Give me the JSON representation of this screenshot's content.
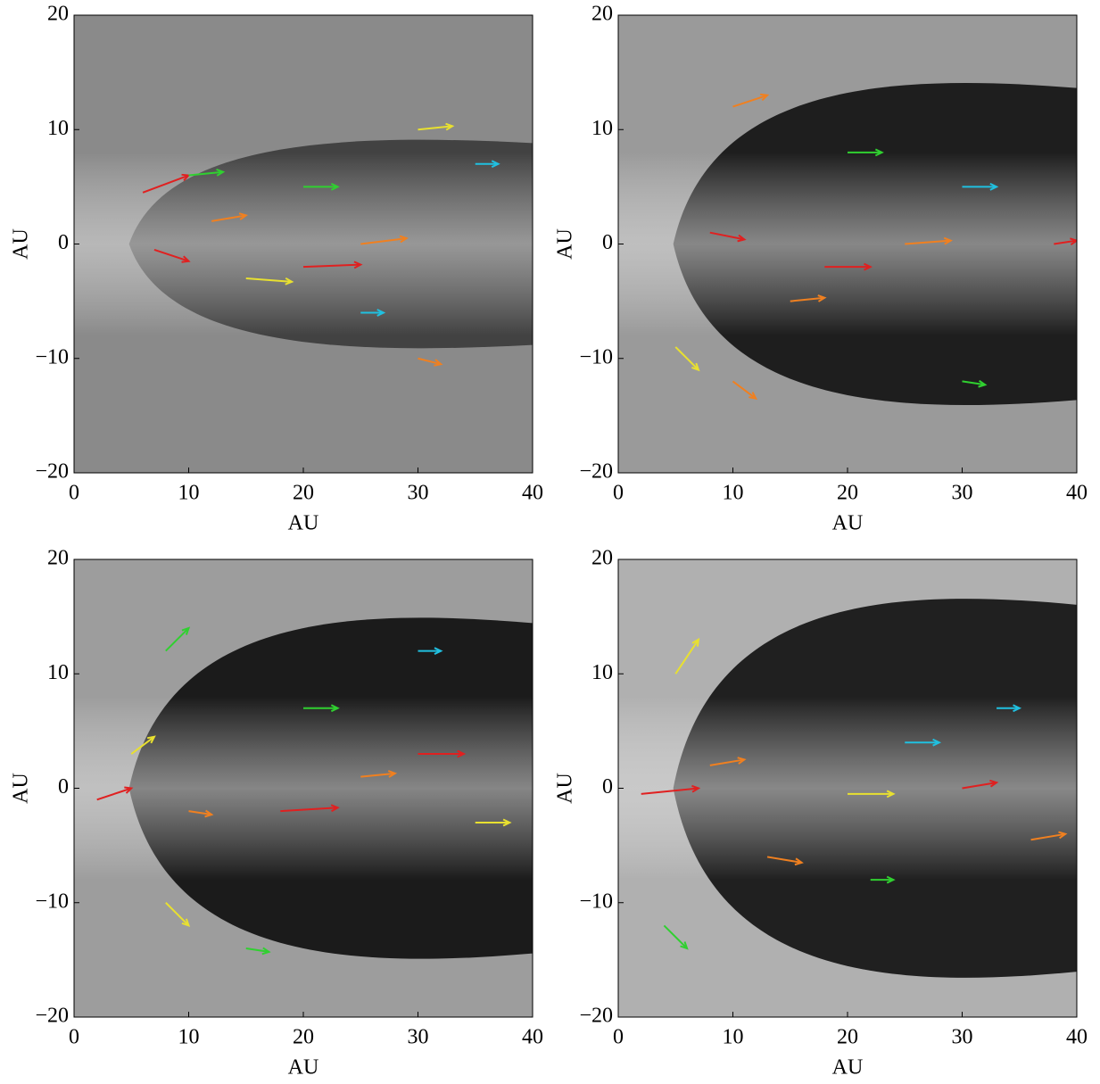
{
  "chart_data": [
    {
      "type": "quiver",
      "xlabel": "AU",
      "ylabel": "AU",
      "xlim": [
        0,
        40
      ],
      "ylim": [
        -20,
        20
      ],
      "xticks": [
        0,
        10,
        20,
        30,
        40
      ],
      "yticks": [
        {
          "value": -20,
          "label": "−20"
        },
        {
          "value": -10,
          "label": "−10"
        },
        0,
        10,
        20
      ],
      "series": [
        {
          "x": [
            6,
            7,
            20,
            12,
            25,
            30,
            15,
            10,
            30,
            20,
            35,
            25
          ],
          "y": [
            4.5,
            -0.5,
            -2,
            2,
            0,
            10,
            -3,
            6,
            -10,
            5,
            7,
            -6
          ],
          "u": [
            4,
            3,
            5,
            3,
            4,
            3,
            4,
            3,
            2,
            3,
            2,
            2
          ],
          "v": [
            1.5,
            -1,
            0.2,
            0.5,
            0.5,
            0.3,
            -0.3,
            0.3,
            -0.5,
            0,
            0,
            0
          ],
          "colors": [
            "#e02020",
            "#e02020",
            "#e02020",
            "#f08020",
            "#f08020",
            "#e8e030",
            "#e8e030",
            "#30d030",
            "#f08020",
            "#30d030",
            "#20c0e0",
            "#20c0e0"
          ]
        }
      ]
    },
    {
      "type": "quiver",
      "xlabel": "AU",
      "ylabel": "AU",
      "xlim": [
        0,
        40
      ],
      "ylim": [
        -20,
        20
      ],
      "xticks": [
        0,
        10,
        20,
        30,
        40
      ],
      "yticks": [
        {
          "value": -20,
          "label": "−20"
        },
        {
          "value": -10,
          "label": "−10"
        },
        0,
        10,
        20
      ],
      "series": [
        {
          "x": [
            8,
            10,
            18,
            25,
            38,
            5,
            15,
            20,
            30,
            30,
            10
          ],
          "y": [
            1,
            12,
            -2,
            0,
            0,
            -9,
            -5,
            8,
            -12,
            5,
            -12
          ],
          "u": [
            3,
            3,
            4,
            4,
            2,
            2,
            3,
            3,
            2,
            3,
            2
          ],
          "v": [
            -0.6,
            1,
            0,
            0.3,
            0.3,
            -2,
            0.3,
            0,
            -0.3,
            0,
            -1.5
          ],
          "colors": [
            "#e02020",
            "#f08020",
            "#e02020",
            "#f08020",
            "#e02020",
            "#e8e030",
            "#f08020",
            "#30d030",
            "#30d030",
            "#20c0e0",
            "#f08020"
          ]
        }
      ]
    },
    {
      "type": "quiver",
      "xlabel": "AU",
      "ylabel": "AU",
      "xlim": [
        0,
        40
      ],
      "ylim": [
        -20,
        20
      ],
      "xticks": [
        0,
        10,
        20,
        30,
        40
      ],
      "yticks": [
        {
          "value": -20,
          "label": "−20"
        },
        {
          "value": -10,
          "label": "−10"
        },
        0,
        10,
        20
      ],
      "series": [
        {
          "x": [
            2,
            18,
            30,
            5,
            10,
            25,
            8,
            20,
            35,
            30,
            15,
            8
          ],
          "y": [
            -1,
            -2,
            3,
            3,
            -2,
            1,
            -10,
            7,
            -3,
            12,
            -14,
            12
          ],
          "u": [
            3,
            5,
            4,
            2,
            2,
            3,
            2,
            3,
            3,
            2,
            2,
            2
          ],
          "v": [
            1,
            0.3,
            0,
            1.5,
            -0.3,
            0.3,
            -2,
            0,
            0,
            0,
            -0.3,
            2
          ],
          "colors": [
            "#e02020",
            "#e02020",
            "#e02020",
            "#e8e030",
            "#f08020",
            "#f08020",
            "#e8e030",
            "#30d030",
            "#e8e030",
            "#20c0e0",
            "#30d030",
            "#30d030"
          ]
        }
      ]
    },
    {
      "type": "quiver",
      "xlabel": "AU",
      "ylabel": "AU",
      "xlim": [
        0,
        40
      ],
      "ylim": [
        -20,
        20
      ],
      "xticks": [
        0,
        10,
        20,
        30,
        40
      ],
      "yticks": [
        {
          "value": -20,
          "label": "−20"
        },
        {
          "value": -10,
          "label": "−10"
        },
        0,
        10,
        20
      ],
      "series": [
        {
          "x": [
            2,
            8,
            13,
            20,
            30,
            36,
            5,
            4,
            25,
            22,
            33
          ],
          "y": [
            -0.5,
            2,
            -6,
            -0.5,
            0,
            -4.5,
            10,
            -12,
            4,
            -8,
            7
          ],
          "u": [
            5,
            3,
            3,
            4,
            3,
            3,
            2,
            2,
            3,
            2,
            2
          ],
          "v": [
            0.5,
            0.5,
            -0.5,
            0,
            0.5,
            0.5,
            3,
            -2,
            0,
            0,
            0
          ],
          "colors": [
            "#e02020",
            "#f08020",
            "#f08020",
            "#e8e030",
            "#e02020",
            "#f08020",
            "#e8e030",
            "#30d030",
            "#20c0e0",
            "#30d030",
            "#20c0e0"
          ]
        }
      ]
    }
  ]
}
